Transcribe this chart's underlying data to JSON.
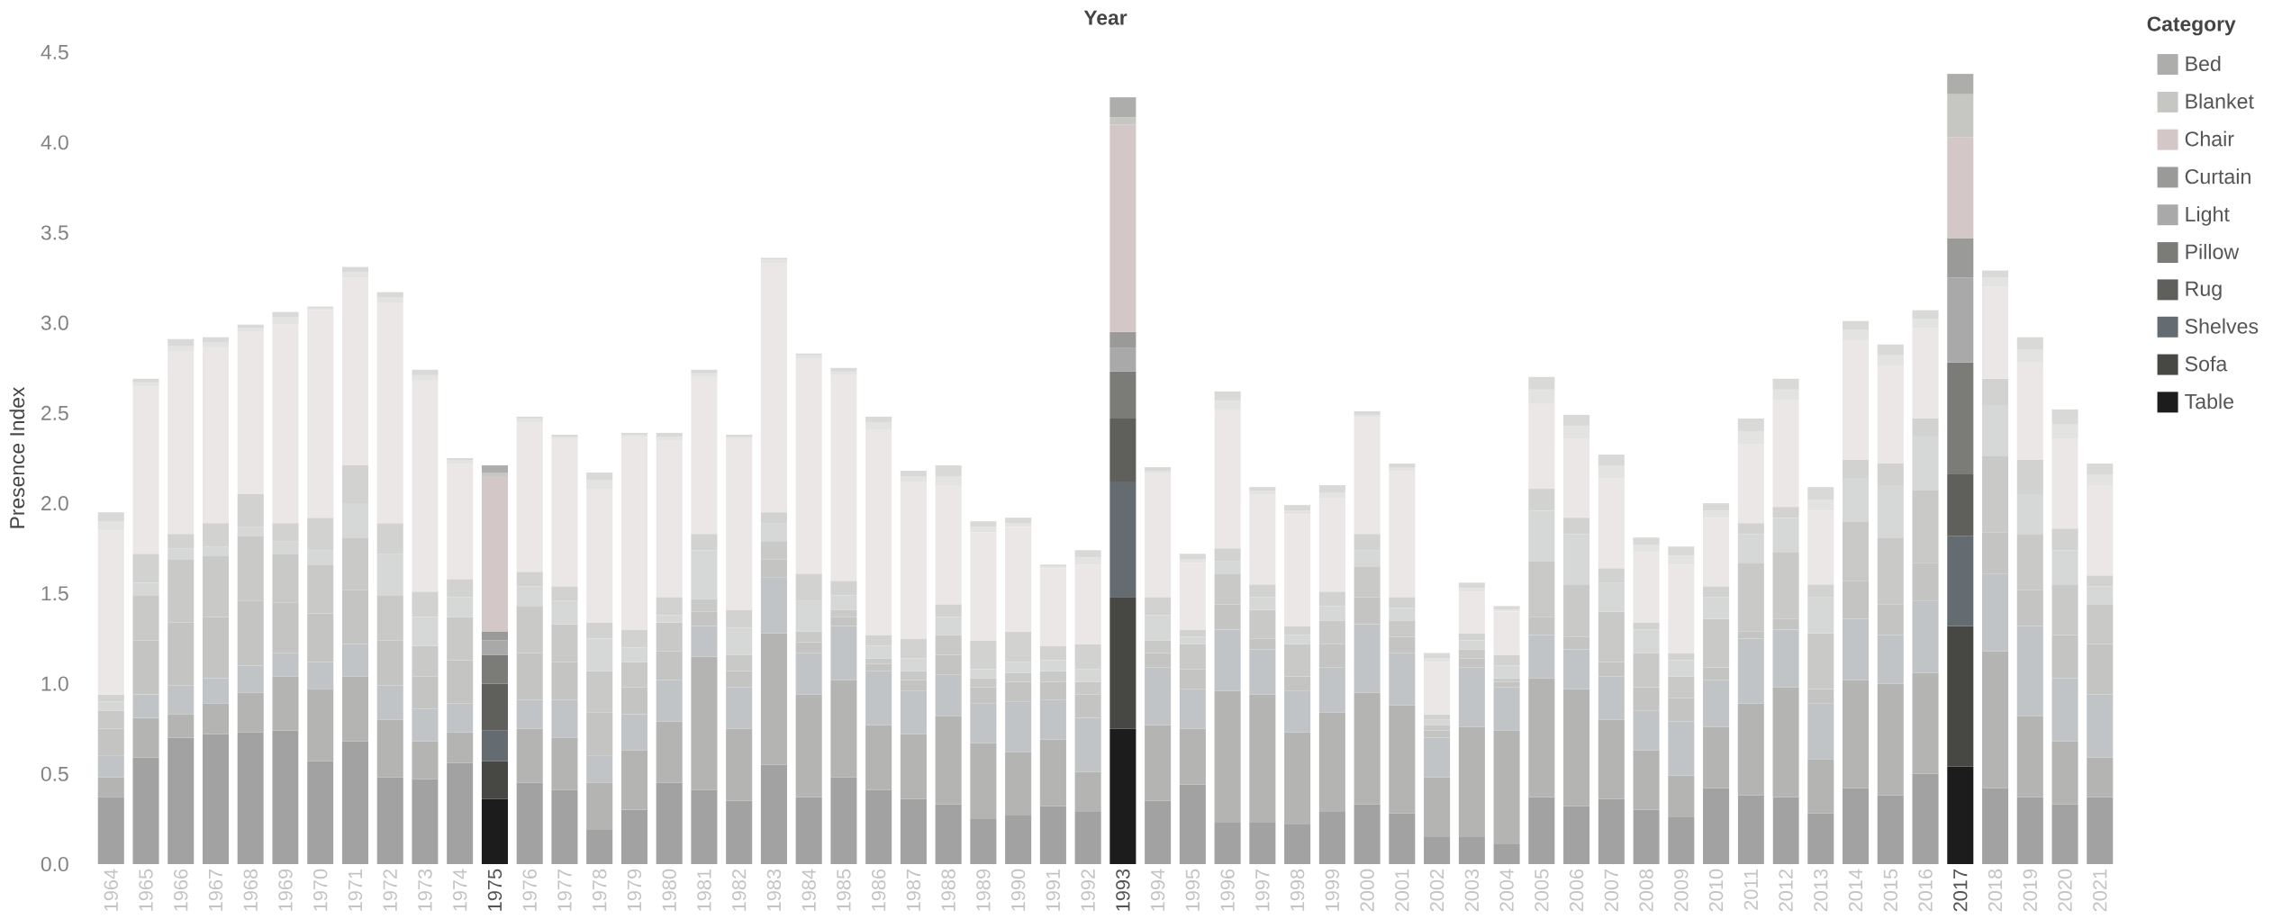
{
  "chart_data": {
    "type": "bar",
    "stacked": true,
    "xlabel": "Year",
    "ylabel": "Presence Index",
    "legend_title": "Category",
    "legend": "right",
    "categories": [
      "1964",
      "1965",
      "1966",
      "1967",
      "1968",
      "1969",
      "1970",
      "1971",
      "1972",
      "1973",
      "1974",
      "1975",
      "1976",
      "1977",
      "1978",
      "1979",
      "1980",
      "1981",
      "1982",
      "1983",
      "1984",
      "1985",
      "1986",
      "1987",
      "1988",
      "1989",
      "1990",
      "1991",
      "1992",
      "1993",
      "1994",
      "1995",
      "1996",
      "1997",
      "1998",
      "1999",
      "2000",
      "2001",
      "2002",
      "2003",
      "2004",
      "2005",
      "2006",
      "2007",
      "2008",
      "2009",
      "2010",
      "2011",
      "2012",
      "2013",
      "2014",
      "2015",
      "2016",
      "2017",
      "2018",
      "2019",
      "2020",
      "2021"
    ],
    "ylim": [
      0,
      4.5
    ],
    "yticks": [
      {
        "value": 0,
        "label": "0.0"
      },
      {
        "value": 0.5,
        "label": "0.5"
      },
      {
        "value": 1,
        "label": "1.0"
      },
      {
        "value": 1.5,
        "label": "1.5"
      },
      {
        "value": 2,
        "label": "2.0"
      },
      {
        "value": 2.5,
        "label": "2.5"
      },
      {
        "value": 3,
        "label": "3.0"
      },
      {
        "value": 3.5,
        "label": "3.5"
      },
      {
        "value": 4,
        "label": "4.0"
      },
      {
        "value": 4.5,
        "label": "4.5"
      }
    ],
    "series": [
      {
        "name": "Table",
        "color": "#1c1c1c",
        "values": [
          0.37,
          0.59,
          0.7,
          0.72,
          0.73,
          0.74,
          0.57,
          0.68,
          0.48,
          0.47,
          0.56,
          0.36,
          0.45,
          0.41,
          0.19,
          0.3,
          0.45,
          0.41,
          0.35,
          0.55,
          0.37,
          0.48,
          0.41,
          0.36,
          0.33,
          0.25,
          0.27,
          0.32,
          0.29,
          0.75,
          0.35,
          0.44,
          0.23,
          0.23,
          0.22,
          0.29,
          0.33,
          0.28,
          0.15,
          0.15,
          0.11,
          0.37,
          0.32,
          0.36,
          0.3,
          0.26,
          0.42,
          0.38,
          0.37,
          0.28,
          0.42,
          0.38,
          0.5,
          0.54,
          0.42,
          0.37,
          0.33,
          0.37
        ],
        "colors": [
          "#a2a2a2",
          "#a2a2a2",
          "#a2a2a2",
          "#a2a2a2",
          "#a2a2a2",
          "#a2a2a2",
          "#a2a2a2",
          "#a2a2a2",
          "#a2a2a2",
          "#a2a2a2",
          "#a2a2a2",
          "#1c1c1c",
          "#a2a2a2",
          "#a2a2a2",
          "#a2a2a2",
          "#a2a2a2",
          "#a2a2a2",
          "#a2a2a2",
          "#a2a2a2",
          "#a2a2a2",
          "#a2a2a2",
          "#a2a2a2",
          "#a2a2a2",
          "#a2a2a2",
          "#a2a2a2",
          "#a2a2a2",
          "#a2a2a2",
          "#a2a2a2",
          "#a2a2a2",
          "#1c1c1c",
          "#a2a2a2",
          "#a2a2a2",
          "#a2a2a2",
          "#a2a2a2",
          "#a2a2a2",
          "#a2a2a2",
          "#a2a2a2",
          "#a2a2a2",
          "#a2a2a2",
          "#a2a2a2",
          "#a2a2a2",
          "#a2a2a2",
          "#a2a2a2",
          "#a2a2a2",
          "#a2a2a2",
          "#a2a2a2",
          "#a2a2a2",
          "#a2a2a2",
          "#a2a2a2",
          "#a2a2a2",
          "#a2a2a2",
          "#a2a2a2",
          "#a2a2a2",
          "#1c1c1c",
          "#a2a2a2",
          "#a2a2a2",
          "#a2a2a2",
          "#a2a2a2"
        ]
      },
      {
        "name": "Sofa",
        "color": "#474743",
        "values": [
          0.11,
          0.22,
          0.13,
          0.17,
          0.22,
          0.3,
          0.4,
          0.36,
          0.32,
          0.21,
          0.17,
          0.21,
          0.3,
          0.29,
          0.26,
          0.33,
          0.34,
          0.74,
          0.4,
          0.73,
          0.57,
          0.54,
          0.36,
          0.36,
          0.49,
          0.42,
          0.35,
          0.37,
          0.22,
          0.73,
          0.42,
          0.31,
          0.73,
          0.71,
          0.51,
          0.55,
          0.62,
          0.6,
          0.33,
          0.61,
          0.63,
          0.66,
          0.65,
          0.44,
          0.33,
          0.23,
          0.34,
          0.51,
          0.61,
          0.3,
          0.6,
          0.62,
          0.56,
          0.78,
          0.76,
          0.45,
          0.35,
          0.22
        ],
        "colors": [
          "#b4b4b2",
          "#b4b4b2",
          "#b4b4b2",
          "#b4b4b2",
          "#b4b4b2",
          "#b4b4b2",
          "#b4b4b2",
          "#b4b4b2",
          "#b4b4b2",
          "#b4b4b2",
          "#b4b4b2",
          "#474743",
          "#b4b4b2",
          "#b4b4b2",
          "#b4b4b2",
          "#b4b4b2",
          "#b4b4b2",
          "#b4b4b2",
          "#b4b4b2",
          "#b4b4b2",
          "#b4b4b2",
          "#b4b4b2",
          "#b4b4b2",
          "#b4b4b2",
          "#b4b4b2",
          "#b4b4b2",
          "#b4b4b2",
          "#b4b4b2",
          "#b4b4b2",
          "#474743",
          "#b4b4b2",
          "#b4b4b2",
          "#b4b4b2",
          "#b4b4b2",
          "#b4b4b2",
          "#b4b4b2",
          "#b4b4b2",
          "#b4b4b2",
          "#b4b4b2",
          "#b4b4b2",
          "#b4b4b2",
          "#b4b4b2",
          "#b4b4b2",
          "#b4b4b2",
          "#b4b4b2",
          "#b4b4b2",
          "#b4b4b2",
          "#b4b4b2",
          "#b4b4b2",
          "#b4b4b2",
          "#b4b4b2",
          "#b4b4b2",
          "#b4b4b2",
          "#474743",
          "#b4b4b2",
          "#b4b4b2",
          "#b4b4b2",
          "#b4b4b2"
        ]
      },
      {
        "name": "Shelves",
        "color": "#646b71",
        "values": [
          0.12,
          0.13,
          0.16,
          0.14,
          0.15,
          0.13,
          0.15,
          0.18,
          0.19,
          0.18,
          0.16,
          0.17,
          0.16,
          0.21,
          0.15,
          0.2,
          0.23,
          0.17,
          0.23,
          0.31,
          0.23,
          0.3,
          0.3,
          0.24,
          0.23,
          0.22,
          0.28,
          0.22,
          0.3,
          0.64,
          0.32,
          0.22,
          0.34,
          0.25,
          0.23,
          0.25,
          0.38,
          0.29,
          0.22,
          0.33,
          0.24,
          0.24,
          0.22,
          0.24,
          0.22,
          0.3,
          0.26,
          0.36,
          0.32,
          0.31,
          0.34,
          0.27,
          0.4,
          0.5,
          0.43,
          0.5,
          0.35,
          0.35
        ],
        "colors": [
          "#c0c4c6",
          "#c0c4c6",
          "#c0c4c6",
          "#c0c4c6",
          "#c0c4c6",
          "#c0c4c6",
          "#c0c4c6",
          "#c0c4c6",
          "#c0c4c6",
          "#c0c4c6",
          "#c0c4c6",
          "#646b71",
          "#c0c4c6",
          "#c0c4c6",
          "#c0c4c6",
          "#c0c4c6",
          "#c0c4c6",
          "#c0c4c6",
          "#c0c4c6",
          "#c0c4c6",
          "#c0c4c6",
          "#c0c4c6",
          "#c0c4c6",
          "#c0c4c6",
          "#c0c4c6",
          "#c0c4c6",
          "#c0c4c6",
          "#c0c4c6",
          "#c0c4c6",
          "#646b71",
          "#c0c4c6",
          "#c0c4c6",
          "#c0c4c6",
          "#c0c4c6",
          "#c0c4c6",
          "#c0c4c6",
          "#c0c4c6",
          "#c0c4c6",
          "#c0c4c6",
          "#c0c4c6",
          "#c0c4c6",
          "#c0c4c6",
          "#c0c4c6",
          "#c0c4c6",
          "#c0c4c6",
          "#c0c4c6",
          "#c0c4c6",
          "#c0c4c6",
          "#c0c4c6",
          "#c0c4c6",
          "#c0c4c6",
          "#c0c4c6",
          "#c0c4c6",
          "#646b71",
          "#c0c4c6",
          "#c0c4c6",
          "#c0c4c6",
          "#c0c4c6"
        ]
      },
      {
        "name": "Rug",
        "color": "#5f605c",
        "values": [
          0.15,
          0.3,
          0.35,
          0.34,
          0.36,
          0.28,
          0.27,
          0.3,
          0.25,
          0.18,
          0.24,
          0.26,
          0.26,
          0.21,
          0.24,
          0.15,
          0.16,
          0.08,
          0.09,
          0.1,
          0.06,
          0.05,
          0.04,
          0.06,
          0.11,
          0.09,
          0.11,
          0.1,
          0.13,
          0.35,
          0.08,
          0.11,
          0.14,
          0.06,
          0.08,
          0.13,
          0.15,
          0.09,
          0.04,
          0.05,
          0.03,
          0.1,
          0.07,
          0.08,
          0.13,
          0.13,
          0.07,
          0.04,
          0.06,
          0.08,
          0.21,
          0.17,
          0.21,
          0.34,
          0.23,
          0.2,
          0.24,
          0.28
        ],
        "colors": [
          "#c4c4c3",
          "#c4c4c3",
          "#c4c4c3",
          "#c4c4c3",
          "#c4c4c3",
          "#c4c4c3",
          "#c4c4c3",
          "#c4c4c3",
          "#c4c4c3",
          "#c4c4c3",
          "#c4c4c3",
          "#5f605c",
          "#c4c4c3",
          "#c4c4c3",
          "#c4c4c3",
          "#c4c4c3",
          "#c4c4c3",
          "#c4c4c3",
          "#c4c4c3",
          "#c4c4c3",
          "#c4c4c3",
          "#c4c4c3",
          "#c4c4c3",
          "#c4c4c3",
          "#c4c4c3",
          "#c4c4c3",
          "#c4c4c3",
          "#c4c4c3",
          "#c4c4c3",
          "#5f605c",
          "#c4c4c3",
          "#c4c4c3",
          "#c4c4c3",
          "#c4c4c3",
          "#c4c4c3",
          "#c4c4c3",
          "#c4c4c3",
          "#c4c4c3",
          "#c4c4c3",
          "#c4c4c3",
          "#c4c4c3",
          "#c4c4c3",
          "#c4c4c3",
          "#c4c4c3",
          "#c4c4c3",
          "#c4c4c3",
          "#c4c4c3",
          "#c4c4c3",
          "#c4c4c3",
          "#c4c4c3",
          "#c4c4c3",
          "#c4c4c3",
          "#c4c4c3",
          "#5f605c",
          "#c4c4c3",
          "#c4c4c3",
          "#c4c4c3",
          "#c4c4c3"
        ]
      },
      {
        "name": "Pillow",
        "color": "#7b7c78",
        "values": [
          0.1,
          0.25,
          0.35,
          0.34,
          0.36,
          0.27,
          0.27,
          0.29,
          0.25,
          0.17,
          0.24,
          0.16,
          0.26,
          0.21,
          0.23,
          0.14,
          0.16,
          0.07,
          0.09,
          0.1,
          0.06,
          0.04,
          0.03,
          0.05,
          0.11,
          0.05,
          0.05,
          0.06,
          0.07,
          0.26,
          0.07,
          0.14,
          0.17,
          0.16,
          0.18,
          0.13,
          0.17,
          0.09,
          0.03,
          0.05,
          0.02,
          0.31,
          0.29,
          0.28,
          0.19,
          0.12,
          0.27,
          0.38,
          0.37,
          0.31,
          0.33,
          0.37,
          0.4,
          0.62,
          0.42,
          0.31,
          0.28,
          0.22
        ],
        "colors": [
          "#c9c9c8",
          "#c9c9c8",
          "#c9c9c8",
          "#c9c9c8",
          "#c9c9c8",
          "#c9c9c8",
          "#c9c9c8",
          "#c9c9c8",
          "#c9c9c8",
          "#c9c9c8",
          "#c9c9c8",
          "#7b7c78",
          "#c9c9c8",
          "#c9c9c8",
          "#c9c9c8",
          "#c9c9c8",
          "#c9c9c8",
          "#c9c9c8",
          "#c9c9c8",
          "#c9c9c8",
          "#c9c9c8",
          "#c9c9c8",
          "#c9c9c8",
          "#c9c9c8",
          "#c9c9c8",
          "#c9c9c8",
          "#c9c9c8",
          "#c9c9c8",
          "#c9c9c8",
          "#7b7c78",
          "#c9c9c8",
          "#c9c9c8",
          "#c9c9c8",
          "#c9c9c8",
          "#c9c9c8",
          "#c9c9c8",
          "#c9c9c8",
          "#c9c9c8",
          "#c9c9c8",
          "#c9c9c8",
          "#c9c9c8",
          "#c9c9c8",
          "#c9c9c8",
          "#c9c9c8",
          "#c9c9c8",
          "#c9c9c8",
          "#c9c9c8",
          "#c9c9c8",
          "#c9c9c8",
          "#c9c9c8",
          "#c9c9c8",
          "#c9c9c8",
          "#c9c9c8",
          "#7b7c78",
          "#c9c9c8",
          "#c9c9c8",
          "#c9c9c8",
          "#c9c9c8"
        ]
      },
      {
        "name": "Light",
        "color": "#a8a9a8",
        "values": [
          0.05,
          0.07,
          0.06,
          0.05,
          0.05,
          0.07,
          0.08,
          0.19,
          0.23,
          0.16,
          0.11,
          0.08,
          0.11,
          0.13,
          0.18,
          0.08,
          0.04,
          0.27,
          0.15,
          0.1,
          0.17,
          0.08,
          0.07,
          0.07,
          0.1,
          0.05,
          0.06,
          0.06,
          0.07,
          0.13,
          0.14,
          0.04,
          0.07,
          0.07,
          0.05,
          0.08,
          0.09,
          0.07,
          0.03,
          0.05,
          0.07,
          0.28,
          0.28,
          0.16,
          0.13,
          0.09,
          0.12,
          0.16,
          0.19,
          0.2,
          0.24,
          0.29,
          0.3,
          0.47,
          0.28,
          0.22,
          0.19,
          0.1
        ],
        "colors": [
          "#d6d7d7",
          "#d6d7d7",
          "#d6d7d7",
          "#d6d7d7",
          "#d6d7d7",
          "#d6d7d7",
          "#d6d7d7",
          "#d6d7d7",
          "#d6d7d7",
          "#d6d7d7",
          "#d6d7d7",
          "#a8a9a8",
          "#d6d7d7",
          "#d6d7d7",
          "#d6d7d7",
          "#d6d7d7",
          "#d6d7d7",
          "#d6d7d7",
          "#d6d7d7",
          "#d6d7d7",
          "#d6d7d7",
          "#d6d7d7",
          "#d6d7d7",
          "#d6d7d7",
          "#d6d7d7",
          "#d6d7d7",
          "#d6d7d7",
          "#d6d7d7",
          "#d6d7d7",
          "#a8a9a8",
          "#d6d7d7",
          "#d6d7d7",
          "#d6d7d7",
          "#d6d7d7",
          "#d6d7d7",
          "#d6d7d7",
          "#d6d7d7",
          "#d6d7d7",
          "#d6d7d7",
          "#d6d7d7",
          "#d6d7d7",
          "#d6d7d7",
          "#d6d7d7",
          "#d6d7d7",
          "#d6d7d7",
          "#d6d7d7",
          "#d6d7d7",
          "#d6d7d7",
          "#d6d7d7",
          "#d6d7d7",
          "#d6d7d7",
          "#d6d7d7",
          "#d6d7d7",
          "#a8a9a8",
          "#d6d7d7",
          "#d6d7d7",
          "#d6d7d7",
          "#d6d7d7"
        ]
      },
      {
        "name": "Curtain",
        "color": "#9a9a98",
        "values": [
          0.04,
          0.16,
          0.08,
          0.13,
          0.18,
          0.1,
          0.18,
          0.21,
          0.17,
          0.14,
          0.1,
          0.05,
          0.08,
          0.08,
          0.09,
          0.1,
          0.1,
          0.09,
          0.1,
          0.06,
          0.15,
          0.08,
          0.06,
          0.11,
          0.07,
          0.16,
          0.17,
          0.08,
          0.14,
          0.09,
          0.1,
          0.04,
          0.07,
          0.07,
          0.05,
          0.08,
          0.09,
          0.06,
          0.03,
          0.04,
          0.06,
          0.12,
          0.09,
          0.08,
          0.04,
          0.04,
          0.06,
          0.06,
          0.06,
          0.07,
          0.1,
          0.12,
          0.1,
          0.22,
          0.15,
          0.19,
          0.12,
          0.06
        ],
        "colors": [
          "#d2d2d1",
          "#d2d2d1",
          "#d2d2d1",
          "#d2d2d1",
          "#d2d2d1",
          "#d2d2d1",
          "#d2d2d1",
          "#d2d2d1",
          "#d2d2d1",
          "#d2d2d1",
          "#d2d2d1",
          "#9a9a98",
          "#d2d2d1",
          "#d2d2d1",
          "#d2d2d1",
          "#d2d2d1",
          "#d2d2d1",
          "#d2d2d1",
          "#d2d2d1",
          "#d2d2d1",
          "#d2d2d1",
          "#d2d2d1",
          "#d2d2d1",
          "#d2d2d1",
          "#d2d2d1",
          "#d2d2d1",
          "#d2d2d1",
          "#d2d2d1",
          "#d2d2d1",
          "#9a9a98",
          "#d2d2d1",
          "#d2d2d1",
          "#d2d2d1",
          "#d2d2d1",
          "#d2d2d1",
          "#d2d2d1",
          "#d2d2d1",
          "#d2d2d1",
          "#d2d2d1",
          "#d2d2d1",
          "#d2d2d1",
          "#d2d2d1",
          "#d2d2d1",
          "#d2d2d1",
          "#d2d2d1",
          "#d2d2d1",
          "#d2d2d1",
          "#d2d2d1",
          "#d2d2d1",
          "#d2d2d1",
          "#d2d2d1",
          "#d2d2d1",
          "#d2d2d1",
          "#9a9a98",
          "#d2d2d1",
          "#d2d2d1",
          "#d2d2d1",
          "#d2d2d1"
        ]
      },
      {
        "name": "Chair",
        "color": "#d3c7c8",
        "values": [
          0.91,
          0.93,
          1.01,
          0.97,
          0.9,
          1.1,
          1.15,
          1.04,
          1.22,
          1.17,
          0.64,
          0.86,
          0.83,
          0.82,
          0.74,
          1.07,
          0.87,
          0.87,
          0.95,
          1.38,
          1.19,
          1.14,
          1.14,
          0.87,
          0.66,
          0.6,
          0.58,
          0.43,
          0.44,
          1.15,
          0.69,
          0.37,
          0.77,
          0.5,
          0.62,
          0.52,
          0.65,
          0.7,
          0.29,
          0.23,
          0.24,
          0.47,
          0.44,
          0.5,
          0.39,
          0.49,
          0.38,
          0.44,
          0.59,
          0.41,
          0.66,
          0.54,
          0.5,
          0.56,
          0.51,
          0.54,
          0.5,
          0.5
        ],
        "colors": [
          "#ece7e7",
          "#ece7e7",
          "#ece7e7",
          "#ece7e7",
          "#ece7e7",
          "#ece7e7",
          "#ece7e7",
          "#ece7e7",
          "#ece7e7",
          "#ece7e7",
          "#ece7e7",
          "#d3c7c8",
          "#ece7e7",
          "#ece7e7",
          "#ece7e7",
          "#ece7e7",
          "#ece7e7",
          "#ece7e7",
          "#ece7e7",
          "#ece7e7",
          "#ece7e7",
          "#ece7e7",
          "#ece7e7",
          "#ece7e7",
          "#ece7e7",
          "#ece7e7",
          "#ece7e7",
          "#ece7e7",
          "#ece7e7",
          "#d3c7c8",
          "#ece7e7",
          "#ece7e7",
          "#ece7e7",
          "#ece7e7",
          "#ece7e7",
          "#ece7e7",
          "#ece7e7",
          "#ece7e7",
          "#ece7e7",
          "#ece7e7",
          "#ece7e7",
          "#ece7e7",
          "#ece7e7",
          "#ece7e7",
          "#ece7e7",
          "#ece7e7",
          "#ece7e7",
          "#ece7e7",
          "#ece7e7",
          "#ece7e7",
          "#ece7e7",
          "#ece7e7",
          "#ece7e7",
          "#d3c7c8",
          "#ece7e7",
          "#ece7e7",
          "#ece7e7",
          "#ece7e7"
        ]
      },
      {
        "name": "Blanket",
        "color": "#c6c6c2",
        "values": [
          0.05,
          0.02,
          0.03,
          0.03,
          0.02,
          0.04,
          0.01,
          0.03,
          0.03,
          0.03,
          0.02,
          0.02,
          0.02,
          0.01,
          0.05,
          0.01,
          0.02,
          0.02,
          0.01,
          0.02,
          0.02,
          0.02,
          0.04,
          0.03,
          0.05,
          0.03,
          0.02,
          0.01,
          0.04,
          0.04,
          0.01,
          0.02,
          0.05,
          0.02,
          0.02,
          0.03,
          0.01,
          0.02,
          0.02,
          0.02,
          0.01,
          0.08,
          0.07,
          0.07,
          0.04,
          0.05,
          0.04,
          0.07,
          0.06,
          0.06,
          0.06,
          0.06,
          0.05,
          0.24,
          0.05,
          0.07,
          0.08,
          0.06
        ],
        "colors": [
          "#e3e3e1",
          "#e3e3e1",
          "#e3e3e1",
          "#e3e3e1",
          "#e3e3e1",
          "#e3e3e1",
          "#e3e3e1",
          "#e3e3e1",
          "#e3e3e1",
          "#e3e3e1",
          "#e3e3e1",
          "#c6c6c2",
          "#e3e3e1",
          "#e3e3e1",
          "#e3e3e1",
          "#e3e3e1",
          "#e3e3e1",
          "#e3e3e1",
          "#e3e3e1",
          "#e3e3e1",
          "#e3e3e1",
          "#e3e3e1",
          "#e3e3e1",
          "#e3e3e1",
          "#e3e3e1",
          "#e3e3e1",
          "#e3e3e1",
          "#e3e3e1",
          "#e3e3e1",
          "#c6c6c2",
          "#e3e3e1",
          "#e3e3e1",
          "#e3e3e1",
          "#e3e3e1",
          "#e3e3e1",
          "#e3e3e1",
          "#e3e3e1",
          "#e3e3e1",
          "#e3e3e1",
          "#e3e3e1",
          "#e3e3e1",
          "#e3e3e1",
          "#e3e3e1",
          "#e3e3e1",
          "#e3e3e1",
          "#e3e3e1",
          "#e3e3e1",
          "#e3e3e1",
          "#e3e3e1",
          "#e3e3e1",
          "#e3e3e1",
          "#e3e3e1",
          "#e3e3e1",
          "#c6c6c2",
          "#e3e3e1",
          "#e3e3e1",
          "#e3e3e1",
          "#e3e3e1"
        ]
      },
      {
        "name": "Bed",
        "color": "#adadab",
        "values": [
          0.05,
          0.02,
          0.04,
          0.03,
          0.02,
          0.03,
          0.01,
          0.03,
          0.03,
          0.03,
          0.01,
          0.04,
          0.01,
          0.01,
          0.04,
          0.01,
          0.02,
          0.02,
          0.01,
          0.01,
          0.01,
          0.02,
          0.03,
          0.03,
          0.06,
          0.03,
          0.03,
          0.01,
          0.04,
          0.11,
          0.02,
          0.03,
          0.05,
          0.02,
          0.03,
          0.04,
          0.02,
          0.02,
          0.03,
          0.03,
          0.02,
          0.07,
          0.06,
          0.06,
          0.04,
          0.05,
          0.04,
          0.07,
          0.06,
          0.07,
          0.05,
          0.06,
          0.05,
          0.11,
          0.04,
          0.07,
          0.08,
          0.06
        ],
        "colors": [
          "#d9d9d8",
          "#d9d9d8",
          "#d9d9d8",
          "#d9d9d8",
          "#d9d9d8",
          "#d9d9d8",
          "#d9d9d8",
          "#d9d9d8",
          "#d9d9d8",
          "#d9d9d8",
          "#d9d9d8",
          "#adadab",
          "#d9d9d8",
          "#d9d9d8",
          "#d9d9d8",
          "#d9d9d8",
          "#d9d9d8",
          "#d9d9d8",
          "#d9d9d8",
          "#d9d9d8",
          "#d9d9d8",
          "#d9d9d8",
          "#d9d9d8",
          "#d9d9d8",
          "#d9d9d8",
          "#d9d9d8",
          "#d9d9d8",
          "#d9d9d8",
          "#d9d9d8",
          "#adadab",
          "#d9d9d8",
          "#d9d9d8",
          "#d9d9d8",
          "#d9d9d8",
          "#d9d9d8",
          "#d9d9d8",
          "#d9d9d8",
          "#d9d9d8",
          "#d9d9d8",
          "#d9d9d8",
          "#d9d9d8",
          "#d9d9d8",
          "#d9d9d8",
          "#d9d9d8",
          "#d9d9d8",
          "#d9d9d8",
          "#d9d9d8",
          "#d9d9d8",
          "#d9d9d8",
          "#d9d9d8",
          "#d9d9d8",
          "#d9d9d8",
          "#d9d9d8",
          "#adadab",
          "#d9d9d8",
          "#d9d9d8",
          "#d9d9d8",
          "#d9d9d8"
        ]
      }
    ]
  }
}
